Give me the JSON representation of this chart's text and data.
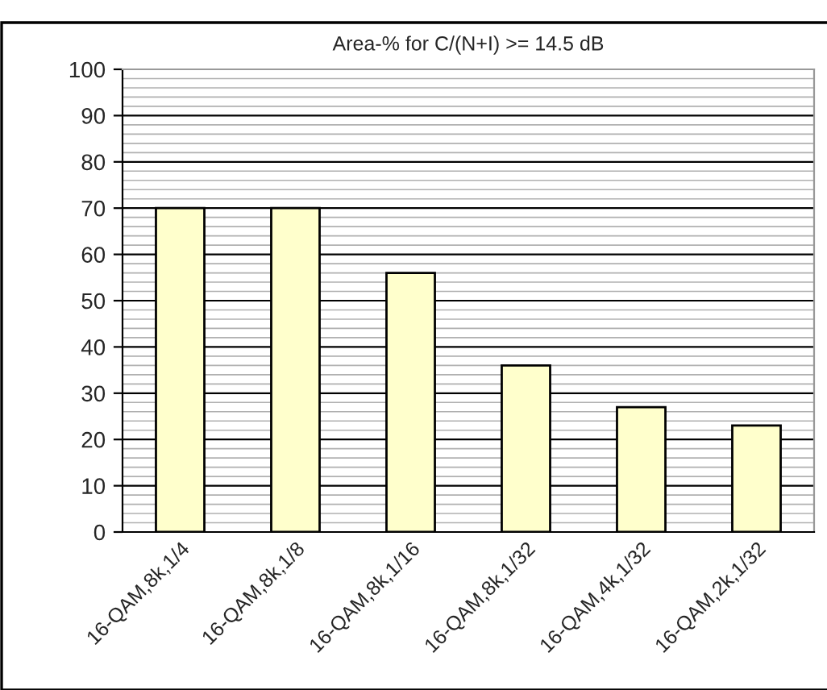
{
  "chart_data": {
    "type": "bar",
    "title": "Area-% for C/(N+I) >= 14.5 dB",
    "categories": [
      "16-QAM,8k,1/4",
      "16-QAM,8k,1/8",
      "16-QAM,8k,1/16",
      "16-QAM,8k,1/32",
      "16-QAM,4k,1/32",
      "16-QAM,2k,1/32"
    ],
    "values": [
      70,
      70,
      56,
      36,
      27,
      23
    ],
    "color": "#ffffcc",
    "ylim": [
      0,
      100
    ],
    "yticks": [
      0,
      10,
      20,
      30,
      40,
      50,
      60,
      70,
      80,
      90,
      100
    ],
    "grid": "y"
  }
}
